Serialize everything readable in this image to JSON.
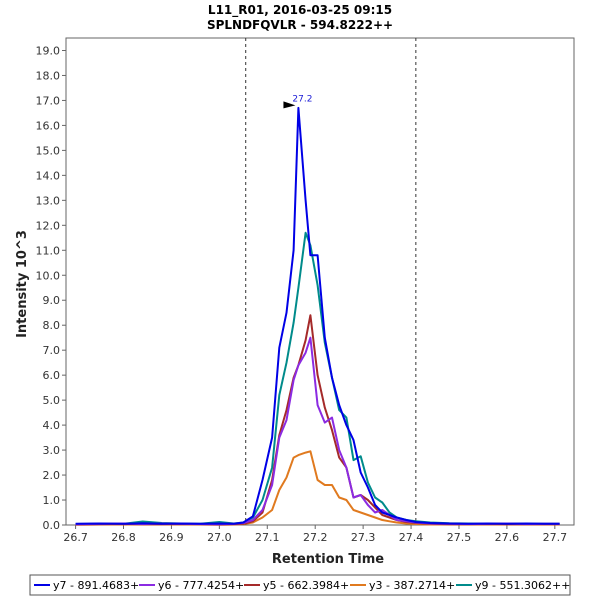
{
  "chart_data": {
    "type": "line",
    "title": "L11_R01, 2016-03-25 09:15",
    "subtitle": "SPLNDFQVLR - 594.8222++",
    "xlabel": "Retention Time",
    "ylabel": "Intensity 10^3",
    "xlim": [
      26.68,
      27.74
    ],
    "ylim": [
      0,
      19.5
    ],
    "x_ticks": [
      "26.7",
      "26.8",
      "26.9",
      "27.0",
      "27.1",
      "27.2",
      "27.3",
      "27.4",
      "27.5",
      "27.6",
      "27.7"
    ],
    "y_ticks": [
      "0.0",
      "1.0",
      "2.0",
      "3.0",
      "4.0",
      "5.0",
      "6.0",
      "7.0",
      "8.0",
      "9.0",
      "10.0",
      "11.0",
      "12.0",
      "13.0",
      "14.0",
      "15.0",
      "16.0",
      "17.0",
      "18.0",
      "19.0"
    ],
    "grid": false,
    "legend_position": "bottom",
    "boundaries": [
      27.055,
      27.41
    ],
    "annotation": {
      "text": "27.2",
      "x": 27.165,
      "y": 16.8
    },
    "x": [
      26.7,
      26.75,
      26.8,
      26.84,
      26.88,
      26.92,
      26.96,
      27.0,
      27.03,
      27.05,
      27.07,
      27.09,
      27.11,
      27.125,
      27.14,
      27.155,
      27.165,
      27.18,
      27.19,
      27.205,
      27.22,
      27.235,
      27.25,
      27.265,
      27.28,
      27.295,
      27.31,
      27.325,
      27.34,
      27.355,
      27.37,
      27.39,
      27.41,
      27.44,
      27.48,
      27.52,
      27.56,
      27.6,
      27.64,
      27.68,
      27.71
    ],
    "series": [
      {
        "name": "y7 - 891.4683+",
        "color": "#0000e6",
        "values": [
          0.05,
          0.06,
          0.05,
          0.07,
          0.05,
          0.06,
          0.05,
          0.06,
          0.05,
          0.1,
          0.35,
          1.8,
          3.5,
          7.1,
          8.5,
          11.0,
          16.7,
          13.0,
          10.8,
          10.8,
          7.5,
          5.9,
          4.8,
          4.0,
          3.4,
          2.1,
          1.5,
          0.8,
          0.5,
          0.4,
          0.3,
          0.2,
          0.12,
          0.08,
          0.06,
          0.05,
          0.06,
          0.05,
          0.06,
          0.05,
          0.05
        ]
      },
      {
        "name": "y6 - 777.4254+",
        "color": "#8b2be2",
        "values": [
          0.03,
          0.05,
          0.06,
          0.04,
          0.06,
          0.05,
          0.04,
          0.03,
          0.05,
          0.08,
          0.2,
          0.6,
          1.6,
          3.5,
          4.2,
          5.8,
          6.4,
          6.9,
          7.5,
          4.8,
          4.1,
          4.3,
          3.0,
          2.3,
          1.1,
          1.2,
          0.8,
          0.5,
          0.6,
          0.4,
          0.2,
          0.15,
          0.1,
          0.06,
          0.05,
          0.04,
          0.05,
          0.06,
          0.04,
          0.05,
          0.05
        ]
      },
      {
        "name": "y5 - 662.3984+",
        "color": "#a52a2a",
        "values": [
          0.02,
          0.03,
          0.04,
          0.03,
          0.03,
          0.04,
          0.03,
          0.02,
          0.03,
          0.05,
          0.15,
          0.5,
          1.8,
          3.6,
          4.6,
          5.9,
          6.4,
          7.4,
          8.4,
          6.0,
          4.7,
          3.8,
          2.7,
          2.3,
          1.1,
          1.2,
          1.0,
          0.7,
          0.4,
          0.3,
          0.2,
          0.12,
          0.08,
          0.05,
          0.03,
          0.03,
          0.04,
          0.03,
          0.03,
          0.03,
          0.03
        ]
      },
      {
        "name": "y3 - 387.2714+",
        "color": "#e07a1f",
        "values": [
          0.01,
          0.02,
          0.02,
          0.02,
          0.02,
          0.02,
          0.02,
          0.01,
          0.02,
          0.04,
          0.1,
          0.3,
          0.6,
          1.4,
          1.9,
          2.7,
          2.8,
          2.9,
          2.95,
          1.8,
          1.6,
          1.6,
          1.1,
          1.0,
          0.6,
          0.5,
          0.4,
          0.3,
          0.2,
          0.15,
          0.1,
          0.06,
          0.04,
          0.02,
          0.02,
          0.02,
          0.02,
          0.02,
          0.02,
          0.02,
          0.02
        ]
      },
      {
        "name": "y9 - 551.3062++",
        "color": "#008b8b",
        "values": [
          0.04,
          0.05,
          0.05,
          0.14,
          0.08,
          0.06,
          0.05,
          0.12,
          0.06,
          0.1,
          0.3,
          1.0,
          2.3,
          5.2,
          6.5,
          8.1,
          9.5,
          11.7,
          11.2,
          9.6,
          7.3,
          5.9,
          4.6,
          4.3,
          2.6,
          2.75,
          1.7,
          1.1,
          0.9,
          0.5,
          0.3,
          0.2,
          0.15,
          0.1,
          0.07,
          0.06,
          0.05,
          0.06,
          0.05,
          0.05,
          0.05
        ]
      }
    ]
  }
}
